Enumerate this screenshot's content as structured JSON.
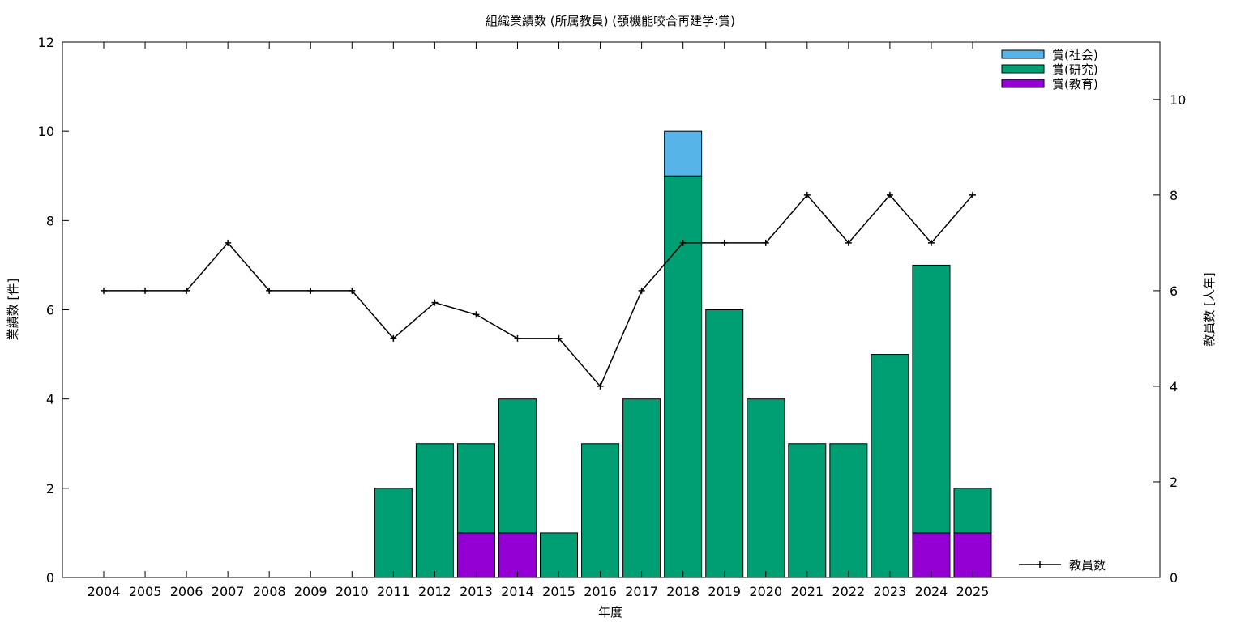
{
  "chart_data": {
    "type": "bar",
    "title": "組織業績数 (所属教員) (顎機能咬合再建学:賞)",
    "xlabel": "年度",
    "ylabel": "業績数 [件]",
    "y2label": "教員数 [人年]",
    "categories": [
      "2004",
      "2005",
      "2006",
      "2007",
      "2008",
      "2009",
      "2010",
      "2011",
      "2012",
      "2013",
      "2014",
      "2015",
      "2016",
      "2017",
      "2018",
      "2019",
      "2020",
      "2021",
      "2022",
      "2023",
      "2024",
      "2025"
    ],
    "ylim": [
      0,
      12
    ],
    "y2lim": [
      0,
      11.2
    ],
    "yticks": [
      0,
      2,
      4,
      6,
      8,
      10,
      12
    ],
    "y2ticks": [
      0,
      2,
      4,
      6,
      8,
      10
    ],
    "stacked": true,
    "series": [
      {
        "name": "賞(教育)",
        "color": "#9400d3",
        "values": [
          0,
          0,
          0,
          0,
          0,
          0,
          0,
          0,
          0,
          1,
          1,
          0,
          0,
          0,
          0,
          0,
          0,
          0,
          0,
          0,
          1,
          1
        ]
      },
      {
        "name": "賞(研究)",
        "color": "#009e73",
        "values": [
          0,
          0,
          0,
          0,
          0,
          0,
          0,
          2,
          3,
          2,
          3,
          1,
          3,
          4,
          9,
          6,
          4,
          3,
          3,
          5,
          6,
          1
        ]
      },
      {
        "name": "賞(社会)",
        "color": "#56b4e9",
        "values": [
          0,
          0,
          0,
          0,
          0,
          0,
          0,
          0,
          0,
          0,
          0,
          0,
          0,
          0,
          1,
          0,
          0,
          0,
          0,
          0,
          0,
          0
        ]
      }
    ],
    "line_series": {
      "name": "教員数",
      "axis": "y2",
      "color": "#000000",
      "values": [
        6,
        6,
        6,
        7,
        6,
        6,
        6,
        5,
        5.75,
        5.5,
        5,
        5,
        4,
        6,
        7,
        7,
        7,
        8,
        7,
        8,
        7,
        8
      ]
    },
    "legend": {
      "bars_position": "top-right",
      "bars_order": [
        "賞(社会)",
        "賞(研究)",
        "賞(教育)"
      ],
      "line_position": "bottom-right"
    },
    "grid": false
  }
}
